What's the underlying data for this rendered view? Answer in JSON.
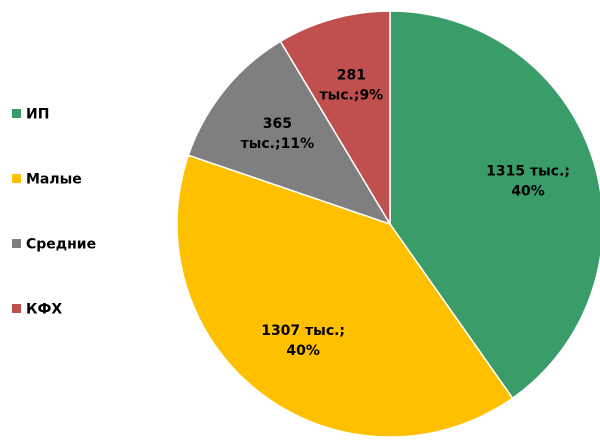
{
  "chart_data": {
    "type": "pie",
    "categories": [
      "ИП",
      "Малые",
      "Средние",
      "КФХ"
    ],
    "values": [
      1315,
      1307,
      365,
      281
    ],
    "value_labels": [
      [
        "1315 тыс.;",
        "40%"
      ],
      [
        "1307 тыс.;",
        "40%"
      ],
      [
        "365",
        "тыс.;11%"
      ],
      [
        "281",
        "тыс.;9%"
      ]
    ],
    "colors": [
      "#3a9c69",
      "#ffc000",
      "#7f7f7f",
      "#c0504d"
    ],
    "legend": "left"
  }
}
